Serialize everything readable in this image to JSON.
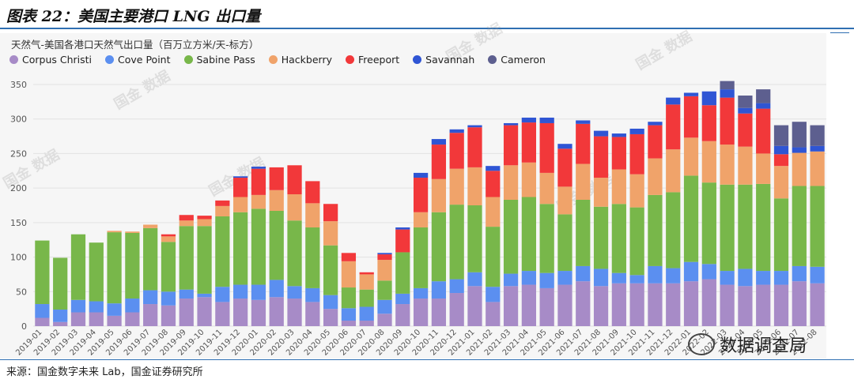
{
  "figure": {
    "title": "图表 22：美国主要港口 LNG 出口量",
    "source": "来源：国金数字未来 Lab，国金证券研究所",
    "watermark_text": "国金 数据",
    "brand_text": "数据调查局"
  },
  "chart_data": {
    "type": "bar",
    "stacked": true,
    "title": "天然气-美国各港口天然气出口量（百万立方米/天-标方）",
    "xlabel": "",
    "ylabel": "",
    "ylim": [
      0,
      350
    ],
    "yticks": [
      0,
      50,
      100,
      150,
      200,
      250,
      300,
      350
    ],
    "grid": true,
    "legend_position": "top-left",
    "categories": [
      "2019-01",
      "2019-02",
      "2019-03",
      "2019-04",
      "2019-05",
      "2019-06",
      "2019-07",
      "2019-08",
      "2019-09",
      "2019-10",
      "2019-11",
      "2019-12",
      "2020-01",
      "2020-02",
      "2020-03",
      "2020-04",
      "2020-05",
      "2020-06",
      "2020-07",
      "2020-08",
      "2020-09",
      "2020-10",
      "2020-11",
      "2020-12",
      "2021-01",
      "2021-02",
      "2021-03",
      "2021-04",
      "2021-05",
      "2021-06",
      "2021-07",
      "2021-08",
      "2021-09",
      "2021-10",
      "2021-11",
      "2021-12",
      "2022-01",
      "2022-02",
      "2022-03",
      "2022-04",
      "2022-05",
      "2022-06",
      "2022-07",
      "2022-08"
    ],
    "series": [
      {
        "name": "Corpus Christi",
        "color": "#a78bc7",
        "values": [
          12,
          6,
          20,
          20,
          15,
          20,
          32,
          30,
          40,
          42,
          35,
          40,
          38,
          42,
          40,
          35,
          25,
          8,
          8,
          18,
          32,
          40,
          40,
          48,
          58,
          35,
          58,
          60,
          55,
          60,
          65,
          58,
          62,
          62,
          62,
          62,
          65,
          68,
          60,
          58,
          60,
          60,
          65,
          62
        ]
      },
      {
        "name": "Cove Point",
        "color": "#5b8ff0",
        "values": [
          20,
          18,
          18,
          16,
          18,
          20,
          20,
          20,
          13,
          5,
          22,
          20,
          22,
          25,
          18,
          20,
          20,
          18,
          20,
          20,
          15,
          15,
          25,
          20,
          20,
          22,
          18,
          20,
          22,
          20,
          22,
          25,
          15,
          12,
          25,
          22,
          28,
          22,
          20,
          25,
          20,
          20,
          22,
          24
        ]
      },
      {
        "name": "Sabine Pass",
        "color": "#78b74a",
        "values": [
          92,
          75,
          95,
          85,
          103,
          95,
          90,
          72,
          92,
          98,
          102,
          105,
          110,
          100,
          95,
          88,
          72,
          30,
          25,
          28,
          60,
          88,
          100,
          108,
          97,
          87,
          107,
          107,
          100,
          82,
          96,
          90,
          100,
          98,
          103,
          110,
          125,
          118,
          125,
          122,
          126,
          105,
          116,
          117
        ]
      },
      {
        "name": "Hackberry",
        "color": "#f0a36a",
        "values": [
          0,
          0,
          0,
          0,
          2,
          2,
          5,
          8,
          8,
          10,
          15,
          22,
          20,
          30,
          38,
          35,
          35,
          38,
          22,
          30,
          0,
          22,
          48,
          52,
          55,
          43,
          50,
          50,
          45,
          40,
          52,
          42,
          50,
          48,
          53,
          62,
          55,
          60,
          58,
          55,
          44,
          47,
          48,
          50
        ]
      },
      {
        "name": "Freeport",
        "color": "#f2383a",
        "values": [
          0,
          0,
          0,
          0,
          0,
          0,
          0,
          3,
          8,
          5,
          8,
          28,
          38,
          33,
          42,
          32,
          25,
          12,
          3,
          8,
          33,
          50,
          50,
          52,
          58,
          38,
          58,
          58,
          72,
          55,
          58,
          60,
          47,
          58,
          48,
          65,
          60,
          52,
          68,
          48,
          65,
          17,
          0,
          0
        ]
      },
      {
        "name": "Savannah",
        "color": "#2f55d4",
        "values": [
          0,
          0,
          0,
          0,
          0,
          0,
          0,
          0,
          0,
          0,
          0,
          2,
          3,
          0,
          0,
          0,
          0,
          0,
          0,
          2,
          3,
          7,
          8,
          5,
          3,
          7,
          3,
          7,
          8,
          7,
          5,
          8,
          5,
          8,
          5,
          10,
          5,
          20,
          12,
          8,
          8,
          12,
          8,
          8
        ]
      },
      {
        "name": "Cameron",
        "color": "#5d5f8f",
        "values": [
          0,
          0,
          0,
          0,
          0,
          0,
          0,
          0,
          0,
          0,
          0,
          0,
          0,
          0,
          0,
          0,
          0,
          0,
          0,
          0,
          0,
          0,
          0,
          0,
          0,
          0,
          0,
          0,
          0,
          0,
          0,
          0,
          0,
          0,
          0,
          0,
          0,
          0,
          12,
          18,
          20,
          30,
          37,
          30
        ]
      }
    ]
  }
}
